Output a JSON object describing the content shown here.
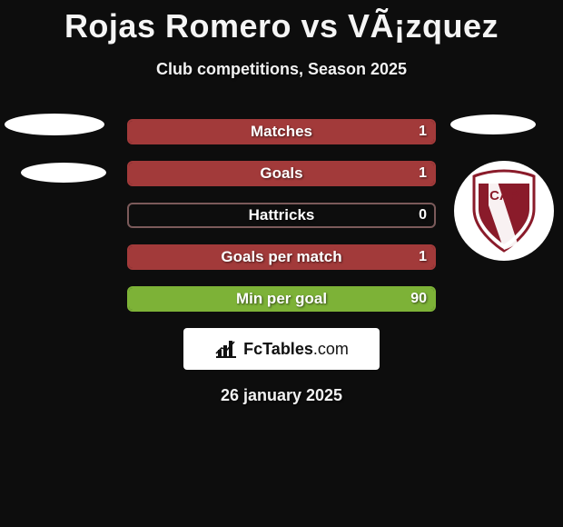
{
  "header": {
    "title": "Rojas Romero vs VÃ¡zquez",
    "subtitle": "Club competitions, Season 2025"
  },
  "colors": {
    "left_accent": "#7db237",
    "right_accent": "#a23a3a",
    "row_border_muted": "#7b5a5a",
    "background": "#0d0d0d"
  },
  "stats": {
    "rows": [
      {
        "label": "Matches",
        "left": "",
        "right": "1",
        "fill": {
          "side": "right",
          "width_pct": 100,
          "color_key": "right_accent",
          "border_key": "right_accent"
        }
      },
      {
        "label": "Goals",
        "left": "",
        "right": "1",
        "fill": {
          "side": "right",
          "width_pct": 100,
          "color_key": "right_accent",
          "border_key": "right_accent"
        }
      },
      {
        "label": "Hattricks",
        "left": "",
        "right": "0",
        "fill": {
          "side": "none",
          "width_pct": 0,
          "color_key": "",
          "border_key": "row_border_muted"
        }
      },
      {
        "label": "Goals per match",
        "left": "",
        "right": "1",
        "fill": {
          "side": "right",
          "width_pct": 100,
          "color_key": "right_accent",
          "border_key": "right_accent"
        }
      },
      {
        "label": "Min per goal",
        "left": "",
        "right": "90",
        "fill": {
          "side": "left",
          "width_pct": 100,
          "color_key": "left_accent",
          "border_key": "left_accent"
        }
      }
    ]
  },
  "branding": {
    "site_name": "FcTables",
    "site_tld": ".com"
  },
  "crest": {
    "text": "CAP",
    "primary": "#8a1b2a",
    "secondary": "#ffffff"
  },
  "footer": {
    "date": "26 january 2025"
  }
}
